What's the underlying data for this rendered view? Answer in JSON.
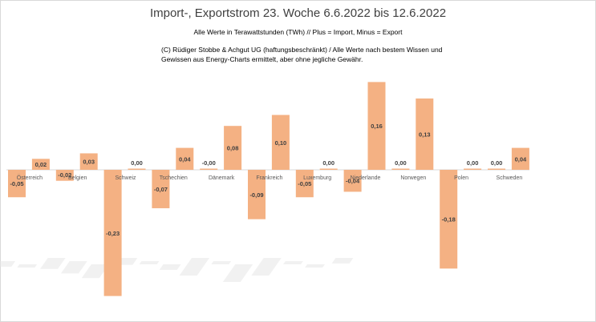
{
  "chart_data": {
    "type": "bar",
    "title": "Import-, Exportstrom 23. Woche 6.6.2022 bis 12.6.2022",
    "subtitle": "Alle Werte in Terawattstunden (TWh) // Plus = Import, Minus = Export",
    "note": "(C) Rüdiger Stobbe & Achgut UG (haftungsbeschränkt) / Alle Werte nach bestem Wissen und Gewissen aus Energy-Charts ermittelt, aber ohne jegliche Gewähr.",
    "groups": [
      "Österreich",
      "Belgien",
      "Schweiz",
      "Tschechien",
      "Dänemark",
      "Frankreich",
      "Luxemburg",
      "Niederlande",
      "Norwegen",
      "Polen",
      "Schweden"
    ],
    "values": [
      -0.05,
      0.02,
      -0.02,
      0.03,
      -0.23,
      0.0,
      -0.07,
      0.04,
      -0.0,
      0.08,
      -0.09,
      0.1,
      -0.05,
      0.0,
      -0.04,
      0.16,
      0.0,
      0.13,
      -0.18,
      0.0,
      0.0,
      0.04
    ],
    "value_labels": [
      "-0,05",
      "0,02",
      "-0,02",
      "0,03",
      "-0,23",
      "0,00",
      "-0,07",
      "0,04",
      "-0,00",
      "0,08",
      "-0,09",
      "0,10",
      "-0,05",
      "0,00",
      "-0,04",
      "0,16",
      "0,00",
      "0,13",
      "-0,18",
      "0,00",
      "0,00",
      "0,04"
    ],
    "ylim": [
      -0.23,
      0.16
    ],
    "colors": {
      "bar": "#f4b183",
      "axis": "#d9d9d9",
      "label": "#404040"
    },
    "grid": false,
    "legend": "none"
  }
}
